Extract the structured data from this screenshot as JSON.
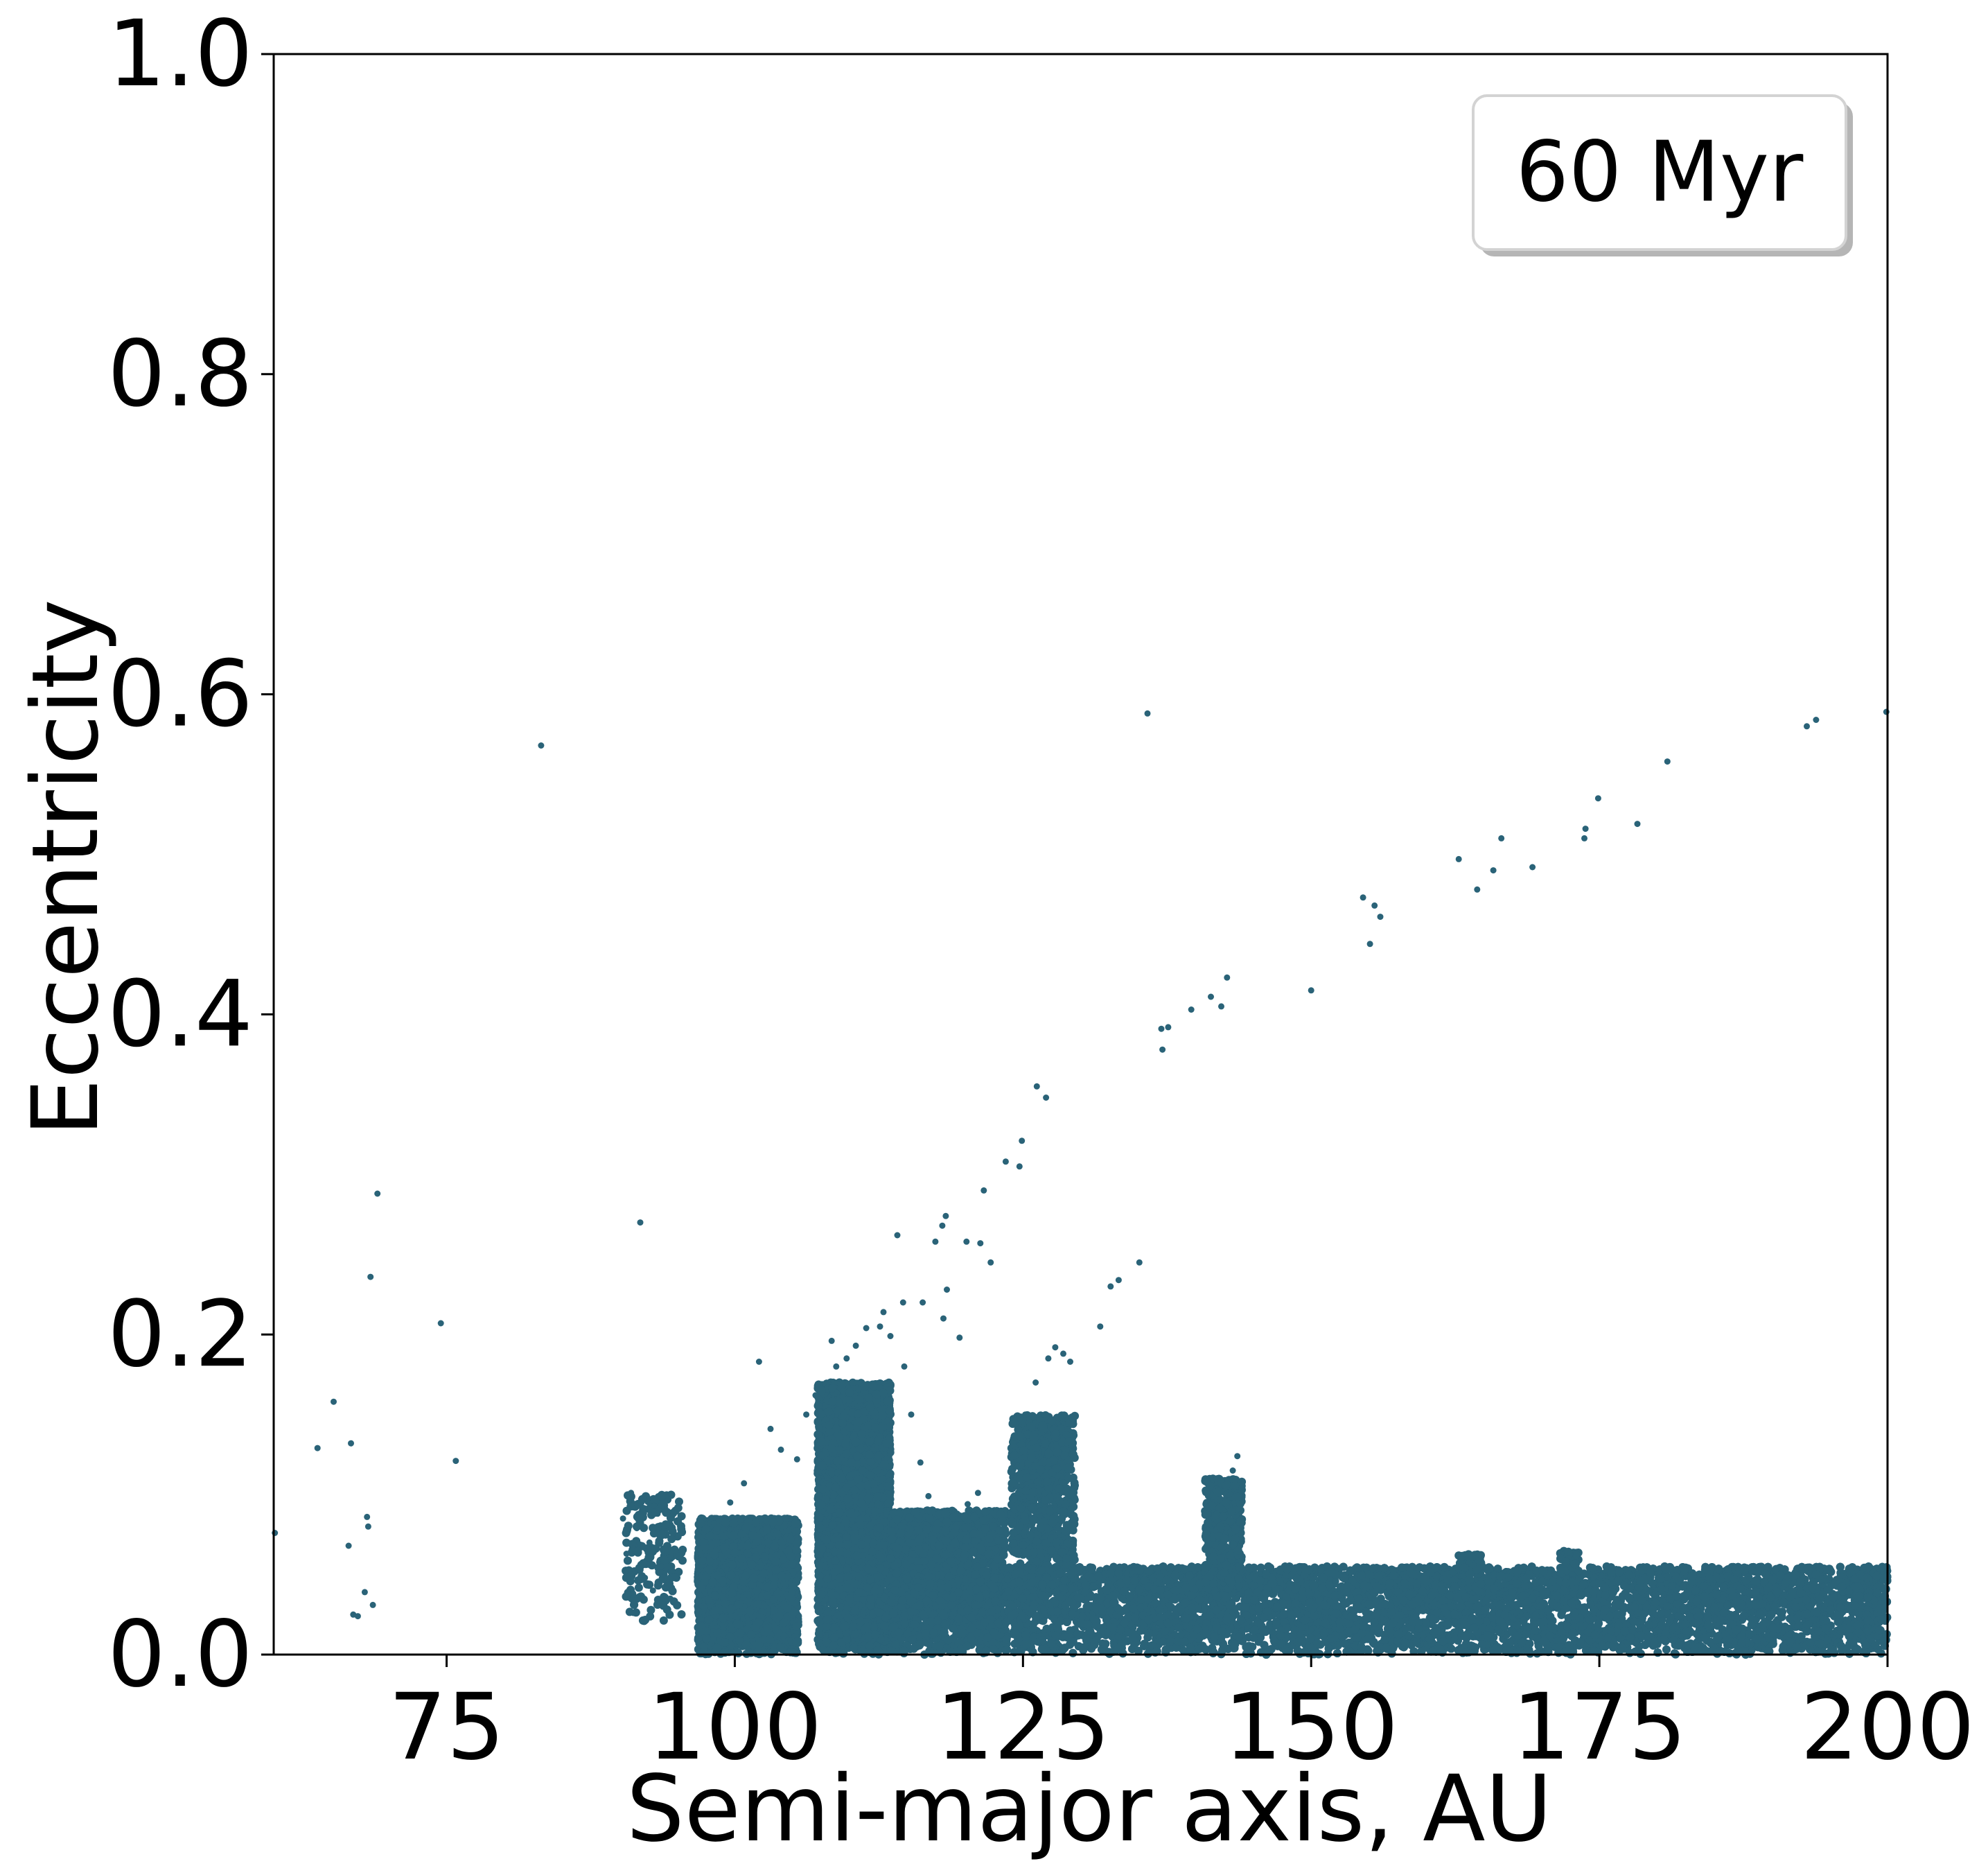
{
  "chart_data": {
    "type": "scatter",
    "xlabel": "Semi-major axis, AU",
    "ylabel": "Eccentricity",
    "xlim": [
      60,
      200
    ],
    "ylim": [
      0,
      1.0
    ],
    "xticks": [
      75,
      100,
      125,
      150,
      175,
      200
    ],
    "xtick_labels": [
      "75",
      "100",
      "125",
      "150",
      "175",
      "200"
    ],
    "yticks": [
      0.0,
      0.2,
      0.4,
      0.6,
      0.8,
      1.0
    ],
    "ytick_labels": [
      "0.0",
      "0.2",
      "0.4",
      "0.6",
      "0.8",
      "1.0"
    ],
    "legend": {
      "text": "60 Myr",
      "position": "top-right"
    },
    "grid": false,
    "color": "#2a6378",
    "series": [
      {
        "points": [
          [
            60.1,
            0.076
          ],
          [
            63.8,
            0.129
          ],
          [
            65.2,
            0.158
          ],
          [
            66.5,
            0.068
          ],
          [
            66.7,
            0.132
          ],
          [
            66.9,
            0.025
          ],
          [
            67.3,
            0.024
          ],
          [
            67.9,
            0.039
          ],
          [
            68.1,
            0.086
          ],
          [
            68.2,
            0.08
          ],
          [
            68.4,
            0.236
          ],
          [
            68.6,
            0.031
          ],
          [
            69.0,
            0.288
          ],
          [
            74.5,
            0.207
          ],
          [
            75.8,
            0.121
          ],
          [
            83.2,
            0.568
          ],
          [
            102.1,
            0.183
          ],
          [
            108.4,
            0.196
          ],
          [
            112.9,
            0.214
          ],
          [
            114.1,
            0.262
          ],
          [
            114.6,
            0.22
          ],
          [
            116.3,
            0.22
          ],
          [
            117.4,
            0.258
          ],
          [
            118.0,
            0.268
          ],
          [
            118.3,
            0.274
          ],
          [
            118.1,
            0.21
          ],
          [
            118.4,
            0.228
          ],
          [
            119.5,
            0.198
          ],
          [
            120.1,
            0.258
          ],
          [
            121.3,
            0.257
          ],
          [
            121.6,
            0.29
          ],
          [
            122.2,
            0.245
          ],
          [
            123.5,
            0.308
          ],
          [
            124.7,
            0.305
          ],
          [
            124.9,
            0.321
          ],
          [
            126.2,
            0.355
          ],
          [
            127.0,
            0.348
          ],
          [
            131.7,
            0.205
          ],
          [
            132.6,
            0.23
          ],
          [
            133.3,
            0.234
          ],
          [
            135.1,
            0.245
          ],
          [
            135.8,
            0.588
          ],
          [
            137.0,
            0.391
          ],
          [
            137.1,
            0.378
          ],
          [
            137.6,
            0.392
          ],
          [
            139.6,
            0.403
          ],
          [
            141.3,
            0.411
          ],
          [
            142.2,
            0.405
          ],
          [
            142.7,
            0.423
          ],
          [
            150.0,
            0.415
          ],
          [
            154.5,
            0.473
          ],
          [
            155.1,
            0.444
          ],
          [
            155.5,
            0.468
          ],
          [
            156.0,
            0.461
          ],
          [
            162.8,
            0.497
          ],
          [
            164.4,
            0.478
          ],
          [
            165.8,
            0.49
          ],
          [
            166.5,
            0.51
          ],
          [
            169.2,
            0.492
          ],
          [
            173.7,
            0.51
          ],
          [
            173.8,
            0.516
          ],
          [
            174.9,
            0.535
          ],
          [
            178.3,
            0.519
          ],
          [
            180.9,
            0.558
          ],
          [
            193.0,
            0.58
          ],
          [
            193.8,
            0.584
          ],
          [
            199.9,
            0.589
          ],
          [
            90.3,
            0.085
          ],
          [
            90.6,
            0.063
          ],
          [
            91.0,
            0.101
          ],
          [
            91.2,
            0.026
          ],
          [
            91.5,
            0.079
          ],
          [
            91.9,
            0.095
          ],
          [
            91.8,
            0.27
          ],
          [
            92.2,
            0.048
          ],
          [
            92.6,
            0.07
          ],
          [
            92.9,
            0.04
          ],
          [
            93.3,
            0.088
          ],
          [
            93.6,
            0.055
          ],
          [
            94.0,
            0.066
          ],
          [
            94.4,
            0.035
          ],
          [
            94.8,
            0.049
          ],
          [
            95.1,
            0.074
          ],
          [
            90.8,
            0.038
          ],
          [
            93.0,
            0.093
          ],
          [
            98.2,
            0.082
          ],
          [
            99.6,
            0.095
          ],
          [
            100.8,
            0.107
          ],
          [
            103.1,
            0.141
          ],
          [
            104.0,
            0.128
          ],
          [
            105.4,
            0.122
          ],
          [
            106.2,
            0.15
          ],
          [
            107.0,
            0.162
          ],
          [
            108.8,
            0.18
          ],
          [
            109.7,
            0.185
          ],
          [
            110.5,
            0.193
          ],
          [
            111.4,
            0.204
          ],
          [
            112.6,
            0.205
          ],
          [
            113.5,
            0.199
          ],
          [
            114.7,
            0.18
          ],
          [
            115.3,
            0.15
          ],
          [
            116.1,
            0.12
          ],
          [
            116.8,
            0.099
          ],
          [
            119.3,
            0.088
          ],
          [
            120.2,
            0.094
          ],
          [
            121.1,
            0.101
          ],
          [
            124.3,
            0.13
          ],
          [
            125.2,
            0.15
          ],
          [
            126.1,
            0.17
          ],
          [
            127.2,
            0.185
          ],
          [
            127.8,
            0.192
          ],
          [
            128.5,
            0.188
          ],
          [
            129.1,
            0.183
          ],
          [
            143.2,
            0.115
          ],
          [
            143.6,
            0.124
          ],
          [
            142.6,
            0.1
          ],
          [
            141.8,
            0.088
          ]
        ],
        "clusters": [
          {
            "x_range": [
              90.5,
              95.5
            ],
            "e_range": [
              0.02,
              0.1
            ],
            "count": 200
          },
          {
            "x_range": [
              96.8,
              105.5
            ],
            "e_range": [
              0.0,
              0.085
            ],
            "count": 2600
          },
          {
            "x_range": [
              107.2,
              113.5
            ],
            "e_range": [
              0.0,
              0.17
            ],
            "count": 3600
          },
          {
            "x_range": [
              113.5,
              123.5
            ],
            "e_range": [
              0.0,
              0.09
            ],
            "count": 2200
          },
          {
            "x_range": [
              123.5,
              200.0
            ],
            "e_range": [
              0.0,
              0.055
            ],
            "count": 12000
          },
          {
            "x_range": [
              124.0,
              129.5
            ],
            "e_range": [
              0.04,
              0.15
            ],
            "count": 1000
          },
          {
            "x_range": [
              140.8,
              144.0
            ],
            "e_range": [
              0.04,
              0.11
            ],
            "count": 420
          },
          {
            "x_range": [
              162.8,
              164.8
            ],
            "e_range": [
              0.05,
              0.063
            ],
            "count": 60
          },
          {
            "x_range": [
              171.6,
              173.2
            ],
            "e_range": [
              0.05,
              0.065
            ],
            "count": 60
          }
        ]
      }
    ]
  }
}
